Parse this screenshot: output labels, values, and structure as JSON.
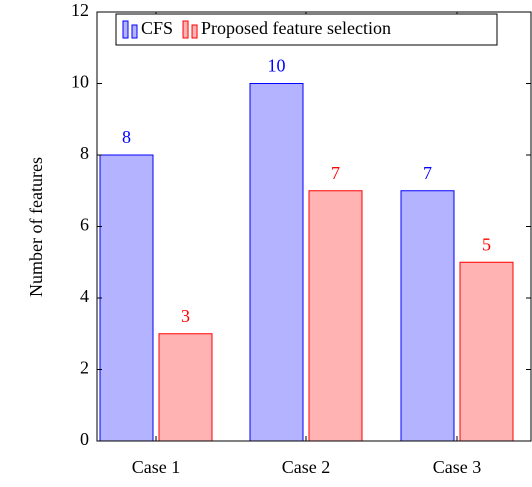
{
  "chart_data": {
    "type": "bar",
    "y_label": "Number of features",
    "categories": [
      "Case 1",
      "Case 2",
      "Case 3"
    ],
    "series": [
      {
        "name": "CFS",
        "color": "#b3b3ff",
        "stroke": "#0000ff",
        "values": [
          8,
          10,
          7
        ]
      },
      {
        "name": "Proposed feature selection",
        "color": "#ffb3b3",
        "stroke": "#ff0000",
        "values": [
          3,
          7,
          5
        ]
      }
    ],
    "ylim": [
      0,
      12
    ],
    "yticks": [
      0,
      2,
      4,
      6,
      8,
      10,
      12
    ],
    "legend": "top"
  }
}
